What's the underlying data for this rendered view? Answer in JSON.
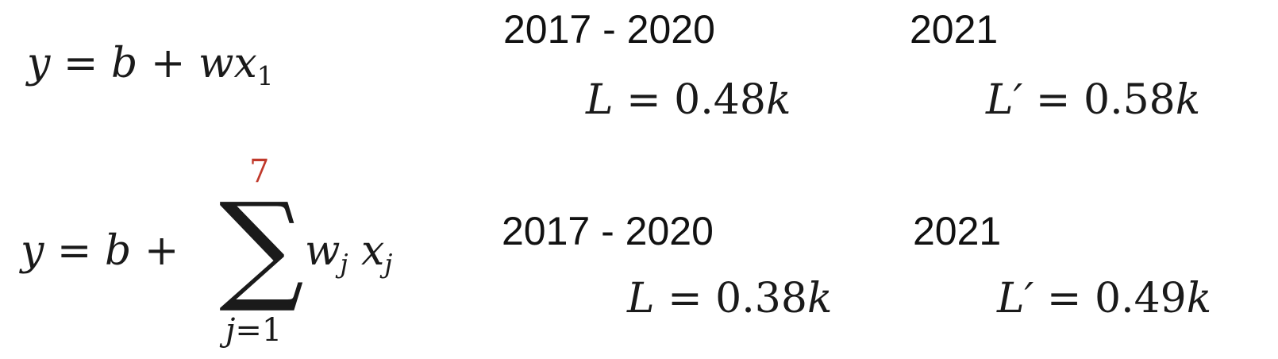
{
  "model1": {
    "y": "y",
    "eq": "=",
    "b": "b",
    "plus": "+",
    "w": "w",
    "x": "x",
    "x_sub": "1",
    "train_label": "2017 - 2020",
    "train_L": "L",
    "train_eq": "=",
    "train_value": "0.48",
    "train_k": "k",
    "test_label": "2021",
    "test_L": "L′",
    "test_eq": "=",
    "test_value": "0.58",
    "test_k": "k"
  },
  "model2": {
    "y": "y",
    "eq": "=",
    "b": "b",
    "plus": "+",
    "sigma": "∑",
    "upper_limit": "7",
    "lower_limit_j": "j",
    "lower_limit_rest": "=1",
    "w": "w",
    "w_sub": "j",
    "x": "x",
    "x_sub": "j",
    "train_label": "2017 - 2020",
    "train_L": "L",
    "train_eq": "=",
    "train_value": "0.38",
    "train_k": "k",
    "test_label": "2021",
    "test_L": "L′",
    "test_eq": "=",
    "test_value": "0.49",
    "test_k": "k"
  },
  "colors": {
    "text": "#1a1a1a",
    "highlight": "#c0392b"
  }
}
